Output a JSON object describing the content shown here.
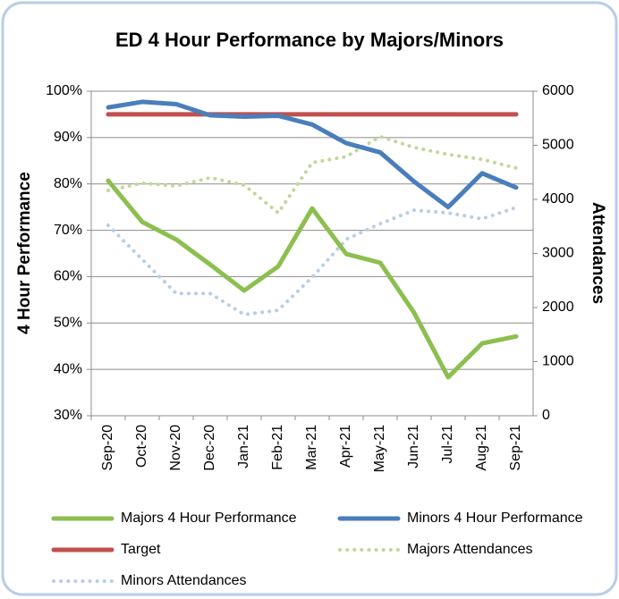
{
  "chart_data": {
    "type": "line",
    "title": "ED 4 Hour Performance by Majors/Minors",
    "y_label": "4 Hour Performance",
    "y2_label": "Attendances",
    "categories": [
      "Sep-20",
      "Oct-20",
      "Nov-20",
      "Dec-20",
      "Jan-21",
      "Feb-21",
      "Mar-21",
      "Apr-21",
      "May-21",
      "Jun-21",
      "Jul-21",
      "Aug-21",
      "Sep-21"
    ],
    "ylim": [
      30,
      100
    ],
    "yticks": [
      {
        "value": 30,
        "label": "30%"
      },
      {
        "value": 40,
        "label": "40%"
      },
      {
        "value": 50,
        "label": "50%"
      },
      {
        "value": 60,
        "label": "60%"
      },
      {
        "value": 70,
        "label": "70%"
      },
      {
        "value": 80,
        "label": "80%"
      },
      {
        "value": 90,
        "label": "90%"
      },
      {
        "value": 100,
        "label": "100%"
      }
    ],
    "y2lim": [
      0,
      6000
    ],
    "y2ticks": [
      0,
      1000,
      2000,
      3000,
      4000,
      5000,
      6000
    ],
    "grid": true,
    "series": [
      {
        "name": "Majors 4 Hour Performance",
        "color": "#8cbf4f",
        "style": "solid",
        "values": [
          80.7,
          71.8,
          68,
          62.6,
          57,
          62.2,
          74.7,
          64.9,
          63,
          52.2,
          38.3,
          45.6,
          47.1
        ]
      },
      {
        "name": "Minors 4 Hour Performance",
        "color": "#4a7ebb",
        "style": "solid",
        "values": [
          96.5,
          97.7,
          97.2,
          94.8,
          94.5,
          94.7,
          92.8,
          88.8,
          86.8,
          80.5,
          75,
          82.3,
          79.2
        ]
      },
      {
        "name": "Target",
        "color": "#c0504d",
        "style": "solid",
        "values": [
          95,
          95,
          95,
          95,
          95,
          95,
          95,
          95,
          95,
          95,
          95,
          95,
          95
        ]
      },
      {
        "name": "Majors Attendances",
        "color": "#c3d69b",
        "style": "dotted",
        "axis": "y2",
        "values": [
          4165,
          4300,
          4250,
          4400,
          4265,
          3750,
          4680,
          4790,
          5160,
          4960,
          4830,
          4740,
          4580
        ]
      },
      {
        "name": "Minors Attendances",
        "color": "#b9cde5",
        "style": "dotted",
        "axis": "y2",
        "values": [
          3520,
          2890,
          2260,
          2260,
          1870,
          1950,
          2560,
          3260,
          3550,
          3800,
          3750,
          3640,
          3850
        ]
      }
    ]
  }
}
